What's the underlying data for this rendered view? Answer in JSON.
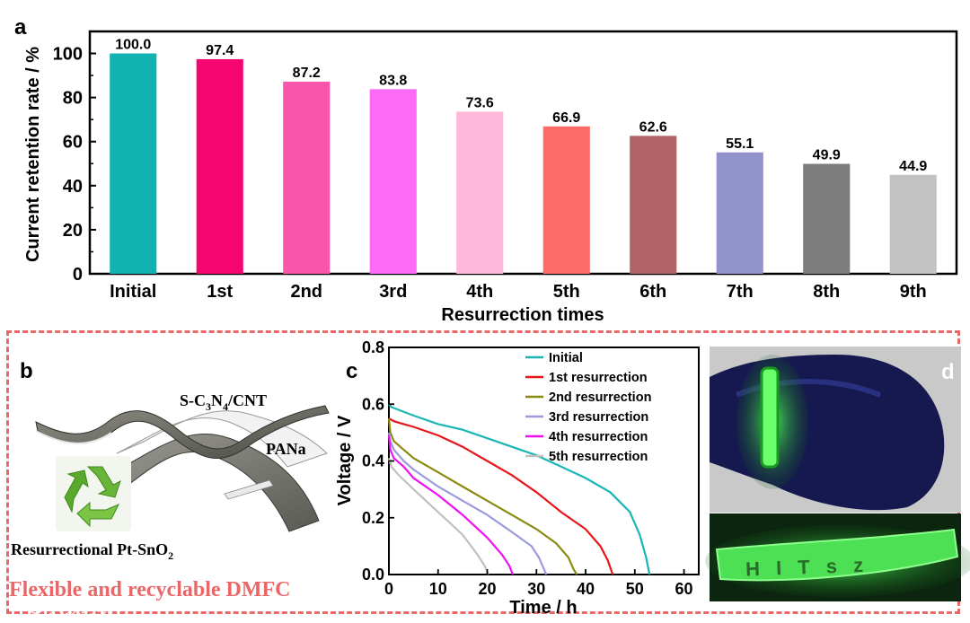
{
  "panel_labels": {
    "a": "a",
    "b": "b",
    "c": "c",
    "d": "d"
  },
  "chart_data": [
    {
      "type": "bar",
      "title": "",
      "xlabel": "Resurrection times",
      "ylabel": "Current retention rate / %",
      "ylim": [
        0,
        110
      ],
      "yticks": [
        0,
        20,
        40,
        60,
        80,
        100
      ],
      "grid": false,
      "categories": [
        "Initial",
        "1st",
        "2nd",
        "3rd",
        "4th",
        "5th",
        "6th",
        "7th",
        "8th",
        "9th"
      ],
      "values": [
        100.0,
        97.4,
        87.2,
        83.8,
        73.6,
        66.9,
        62.6,
        55.1,
        49.9,
        44.9
      ],
      "value_labels": [
        "100.0",
        "97.4",
        "87.2",
        "83.8",
        "73.6",
        "66.9",
        "62.6",
        "55.1",
        "49.9",
        "44.9"
      ],
      "colors": [
        "#12b2b0",
        "#f5056f",
        "#f855ab",
        "#fb6bf6",
        "#fdb9dc",
        "#fd6a68",
        "#b26265",
        "#9191cb",
        "#7c7c7c",
        "#c2c2c2"
      ]
    },
    {
      "type": "line",
      "title": "",
      "xlabel": "Time / h",
      "ylabel": "Voltage / V",
      "xlim": [
        0,
        63
      ],
      "ylim": [
        0,
        0.8
      ],
      "xticks": [
        0,
        10,
        20,
        30,
        40,
        50,
        60
      ],
      "yticks": [
        0.0,
        0.2,
        0.4,
        0.6,
        0.8
      ],
      "xtick_labels": [
        "0",
        "10",
        "20",
        "30",
        "40",
        "50",
        "60"
      ],
      "ytick_labels": [
        "0.0",
        "0.2",
        "0.4",
        "0.6",
        "0.8"
      ],
      "legend_position": "top-right",
      "series": [
        {
          "name": "Initial",
          "color": "#1ab5b5",
          "x": [
            0,
            0.5,
            2,
            5,
            10,
            15,
            20,
            25,
            30,
            35,
            40,
            45,
            49,
            51,
            52.3,
            53
          ],
          "y": [
            0.6,
            0.59,
            0.58,
            0.56,
            0.53,
            0.51,
            0.48,
            0.45,
            0.42,
            0.38,
            0.34,
            0.29,
            0.22,
            0.14,
            0.06,
            0.0
          ]
        },
        {
          "name": "1st resurrection",
          "color": "#e8161b",
          "x": [
            0,
            1,
            3,
            5,
            10,
            15,
            20,
            25,
            30,
            35,
            40,
            43,
            44.5,
            45.5
          ],
          "y": [
            0.55,
            0.54,
            0.53,
            0.52,
            0.49,
            0.45,
            0.4,
            0.35,
            0.29,
            0.22,
            0.16,
            0.1,
            0.05,
            0.0
          ]
        },
        {
          "name": "2nd resurrection",
          "color": "#8b8b12",
          "x": [
            0,
            0.3,
            1,
            3,
            5,
            10,
            15,
            20,
            25,
            30,
            34,
            36.5,
            37.5,
            38.2
          ],
          "y": [
            0.55,
            0.5,
            0.47,
            0.44,
            0.41,
            0.36,
            0.31,
            0.26,
            0.21,
            0.16,
            0.11,
            0.06,
            0.02,
            0.0
          ]
        },
        {
          "name": "3rd resurrection",
          "color": "#9a9add",
          "x": [
            0,
            0.3,
            1,
            3,
            5,
            10,
            15,
            20,
            25,
            29,
            30.5,
            31.5,
            32
          ],
          "y": [
            0.5,
            0.47,
            0.44,
            0.4,
            0.37,
            0.31,
            0.26,
            0.21,
            0.15,
            0.1,
            0.06,
            0.02,
            0.0
          ]
        },
        {
          "name": "4th resurrection",
          "color": "#f011f0",
          "x": [
            0,
            0.3,
            1,
            3,
            5,
            10,
            15,
            20,
            23,
            24.5,
            25.2
          ],
          "y": [
            0.49,
            0.44,
            0.41,
            0.38,
            0.34,
            0.28,
            0.21,
            0.13,
            0.07,
            0.03,
            0.0
          ]
        },
        {
          "name": "5th resurrection",
          "color": "#c0c0c0",
          "x": [
            0,
            0.5,
            2,
            5,
            10,
            15,
            18,
            19.5,
            20.2
          ],
          "y": [
            0.41,
            0.38,
            0.35,
            0.3,
            0.22,
            0.14,
            0.07,
            0.03,
            0.0
          ]
        }
      ]
    }
  ],
  "panel_b": {
    "label_top": {
      "base": "S-C",
      "sub1": "3",
      "mid": "N",
      "sub2": "4",
      "tail": "/CNT"
    },
    "label_mid": "PANa",
    "label_bottom": {
      "base": "Resurrectional Pt-SnO",
      "sub": "2"
    },
    "caption": "Flexible and recyclable DMFC",
    "caption_color": "#e8686a",
    "recycle_icon": "recycle-icon"
  },
  "panel_d": {
    "band_text": "H I T s z"
  },
  "watermark": {
    "text": "大数跨境",
    "icon": "watermark-logo-icon"
  }
}
